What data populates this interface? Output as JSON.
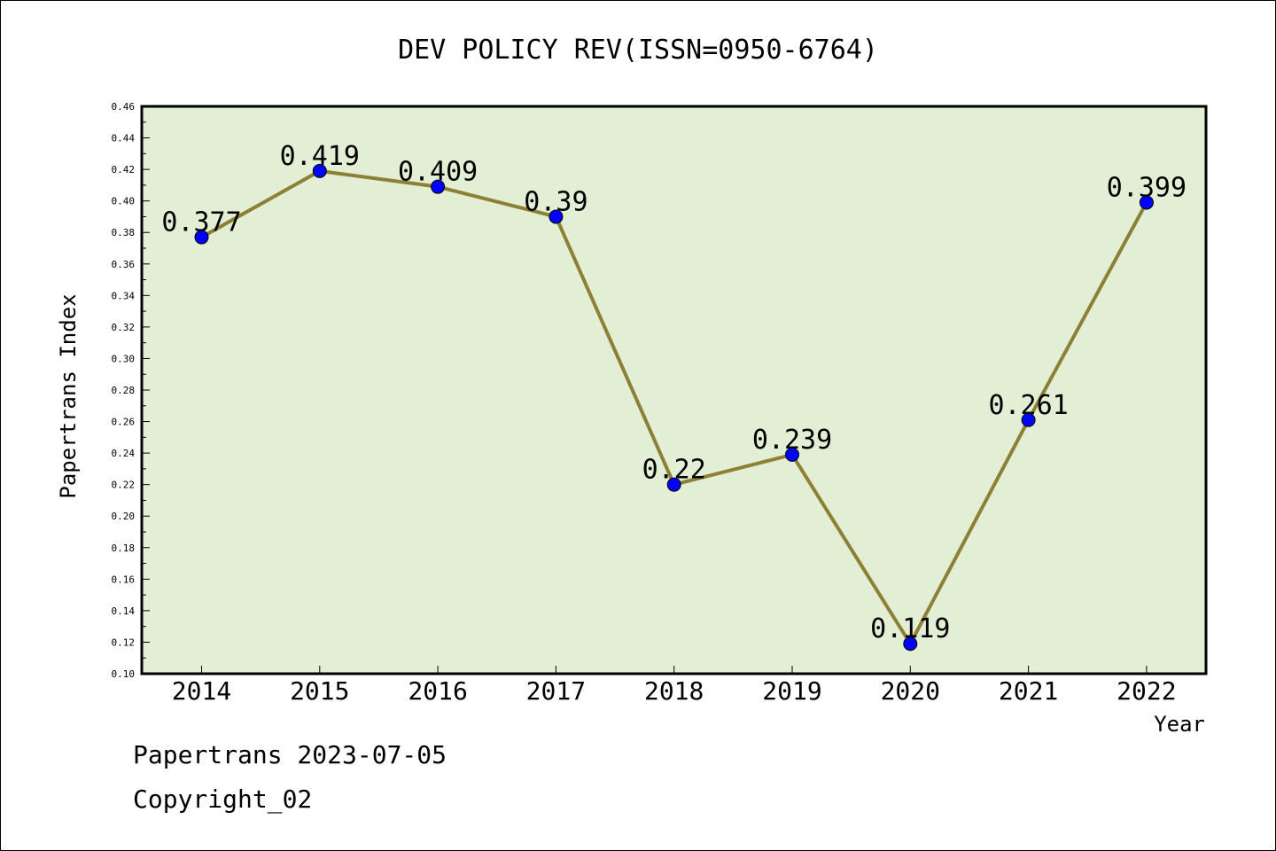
{
  "chart_data": {
    "type": "line",
    "title": "DEV POLICY REV(ISSN=0950-6764)",
    "xlabel": "Year",
    "ylabel": "Papertrans Index",
    "categories": [
      "2014",
      "2015",
      "2016",
      "2017",
      "2018",
      "2019",
      "2020",
      "2021",
      "2022"
    ],
    "series": [
      {
        "values": [
          0.377,
          0.419,
          0.409,
          0.39,
          0.22,
          0.239,
          0.119,
          0.261,
          0.399
        ],
        "labels": [
          "0.377",
          "0.419",
          "0.409",
          "0.39",
          "0.22",
          "0.239",
          "0.119",
          "0.261",
          "0.399"
        ]
      }
    ],
    "ylim": [
      0.1,
      0.46
    ],
    "yticks": [
      "0.10",
      "0.12",
      "0.14",
      "0.16",
      "0.18",
      "0.20",
      "0.22",
      "0.24",
      "0.26",
      "0.28",
      "0.30",
      "0.32",
      "0.34",
      "0.36",
      "0.38",
      "0.40",
      "0.42",
      "0.44",
      "0.46"
    ],
    "grid": false,
    "colors": {
      "plot_background": "#e2efd4",
      "line": "#8b8035",
      "marker": "#0000ff"
    }
  },
  "footer": {
    "line1": "Papertrans 2023-07-05",
    "line2": "Copyright_02"
  }
}
